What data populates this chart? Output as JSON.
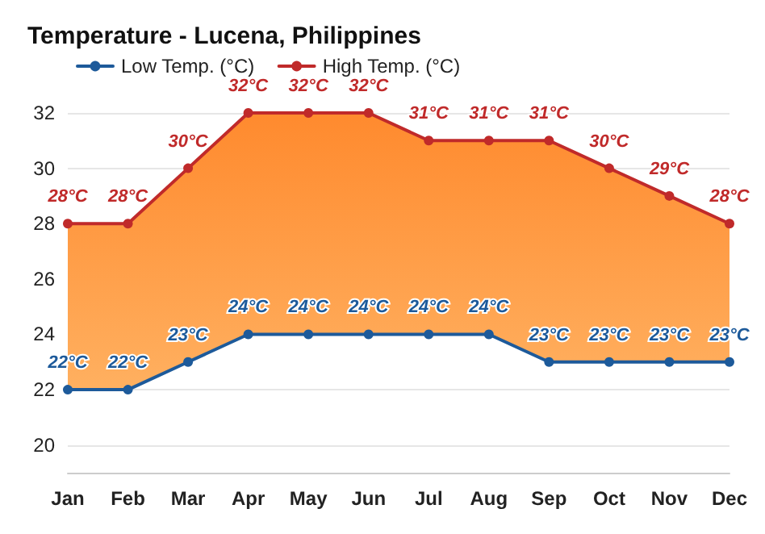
{
  "chart_data": {
    "type": "line",
    "title": "Temperature - Lucena, Philippines",
    "categories": [
      "Jan",
      "Feb",
      "Mar",
      "Apr",
      "May",
      "Jun",
      "Jul",
      "Aug",
      "Sep",
      "Oct",
      "Nov",
      "Dec"
    ],
    "series": [
      {
        "name": "Low Temp. (°C)",
        "type": "line",
        "color": "#1d5a9a",
        "values": [
          22,
          22,
          23,
          24,
          24,
          24,
          24,
          24,
          23,
          23,
          23,
          23
        ],
        "value_labels": [
          "22°C",
          "22°C",
          "23°C",
          "24°C",
          "24°C",
          "24°C",
          "24°C",
          "24°C",
          "23°C",
          "23°C",
          "23°C",
          "23°C"
        ]
      },
      {
        "name": "High Temp. (°C)",
        "type": "area",
        "color": "#c02a2a",
        "values": [
          28,
          28,
          30,
          32,
          32,
          32,
          31,
          31,
          31,
          30,
          29,
          28
        ],
        "value_labels": [
          "28°C",
          "28°C",
          "30°C",
          "32°C",
          "32°C",
          "32°C",
          "31°C",
          "31°C",
          "31°C",
          "30°C",
          "29°C",
          "28°C"
        ]
      }
    ],
    "ylim": [
      19,
      32
    ],
    "yticks": [
      20,
      22,
      24,
      26,
      28,
      30,
      32
    ],
    "grid": "y",
    "legend": "top left",
    "marker": "circle",
    "line_style": "solid"
  }
}
